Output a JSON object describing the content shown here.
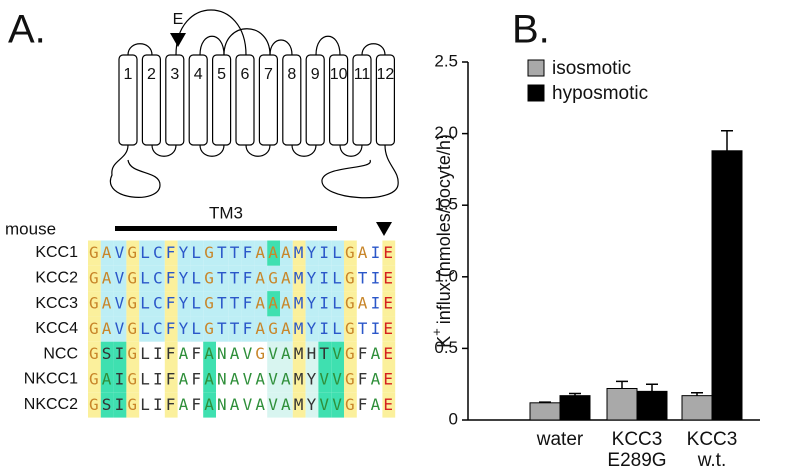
{
  "panel_a": {
    "label": "A.",
    "marker": "E",
    "helices": [
      1,
      2,
      3,
      4,
      5,
      6,
      7,
      8,
      9,
      10,
      11,
      12
    ],
    "alignment": {
      "species": "mouse",
      "region": "TM3",
      "rows": [
        {
          "name": "KCC1",
          "seq": "GAVGLCFYLGTTFAAAMYILGAIE"
        },
        {
          "name": "KCC2",
          "seq": "GAVGLCFYLGTTFAGAMYILGTIE"
        },
        {
          "name": "KCC3",
          "seq": "GAVGLCFYLGTTFAAAMYILGAIE"
        },
        {
          "name": "KCC4",
          "seq": "GAVGLCFYLGTTFAGAMYILGTIE"
        },
        {
          "name": "NCC",
          "seq": "GSIGLIFAFANAVGVAMHTVGFAE"
        },
        {
          "name": "NKCC1",
          "seq": "GAIGLIFAFANAVAVAMYVVGFAE"
        },
        {
          "name": "NKCC2",
          "seq": "GSIGLIFAFANAVAVAMYVVGFAE"
        }
      ]
    }
  },
  "chart_data": {
    "type": "bar",
    "panel_label": "B.",
    "ylabel": {
      "base": "K",
      "sup": "+",
      "rest": "influx (nmoles/oocyte/h)"
    },
    "categories": [
      [
        "water"
      ],
      [
        "KCC3",
        "E289G"
      ],
      [
        "KCC3",
        "w.t."
      ]
    ],
    "series": [
      {
        "name": "isosmotic",
        "color": "#a9a9a9",
        "values": [
          0.12,
          0.22,
          0.17
        ],
        "errors": [
          0.005,
          0.05,
          0.02
        ]
      },
      {
        "name": "hyposmotic",
        "color": "#000000",
        "values": [
          0.17,
          0.2,
          1.88
        ],
        "errors": [
          0.015,
          0.05,
          0.14
        ]
      }
    ],
    "ylim": [
      0,
      2.5
    ],
    "yticks": [
      0,
      0.5,
      {
        "value": 1.0,
        "label": "1.0"
      },
      1.5,
      {
        "value": 2.0,
        "label": "2.0"
      },
      2.5
    ]
  }
}
